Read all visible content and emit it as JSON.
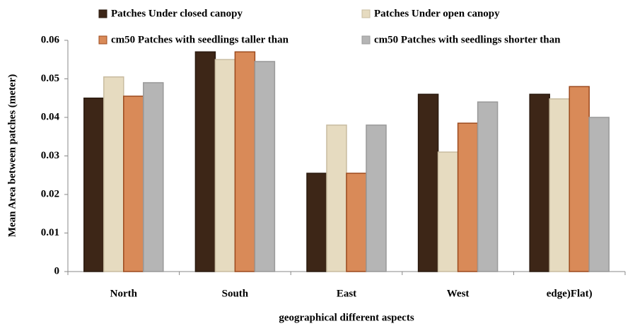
{
  "chart_data": {
    "type": "bar",
    "x_label": "geographical different aspects",
    "y_label": "Mean Area between patches (meter)",
    "categories": [
      "North",
      "South",
      "East",
      "West",
      "edge)Flat)"
    ],
    "series": [
      {
        "name": "Patches Under closed canopy",
        "color": "#3d2617",
        "values": [
          0.045,
          0.057,
          0.0255,
          0.046,
          0.046
        ]
      },
      {
        "name": "Patches Under open canopy",
        "color": "#e6dbc0",
        "values": [
          0.0505,
          0.055,
          0.038,
          0.031,
          0.0448
        ]
      },
      {
        "name": "cm50 Patches with seedlings taller than",
        "color": "#d98a58",
        "values": [
          0.0455,
          0.057,
          0.0255,
          0.0385,
          0.048
        ]
      },
      {
        "name": "cm50 Patches with seedlings shorter than",
        "color": "#b5b5b5",
        "values": [
          0.049,
          0.0545,
          0.038,
          0.044,
          0.04
        ]
      }
    ],
    "ylim": [
      0,
      0.06
    ],
    "yticks": [
      0,
      0.01,
      0.02,
      0.03,
      0.04,
      0.05,
      0.06
    ],
    "grid": false
  }
}
